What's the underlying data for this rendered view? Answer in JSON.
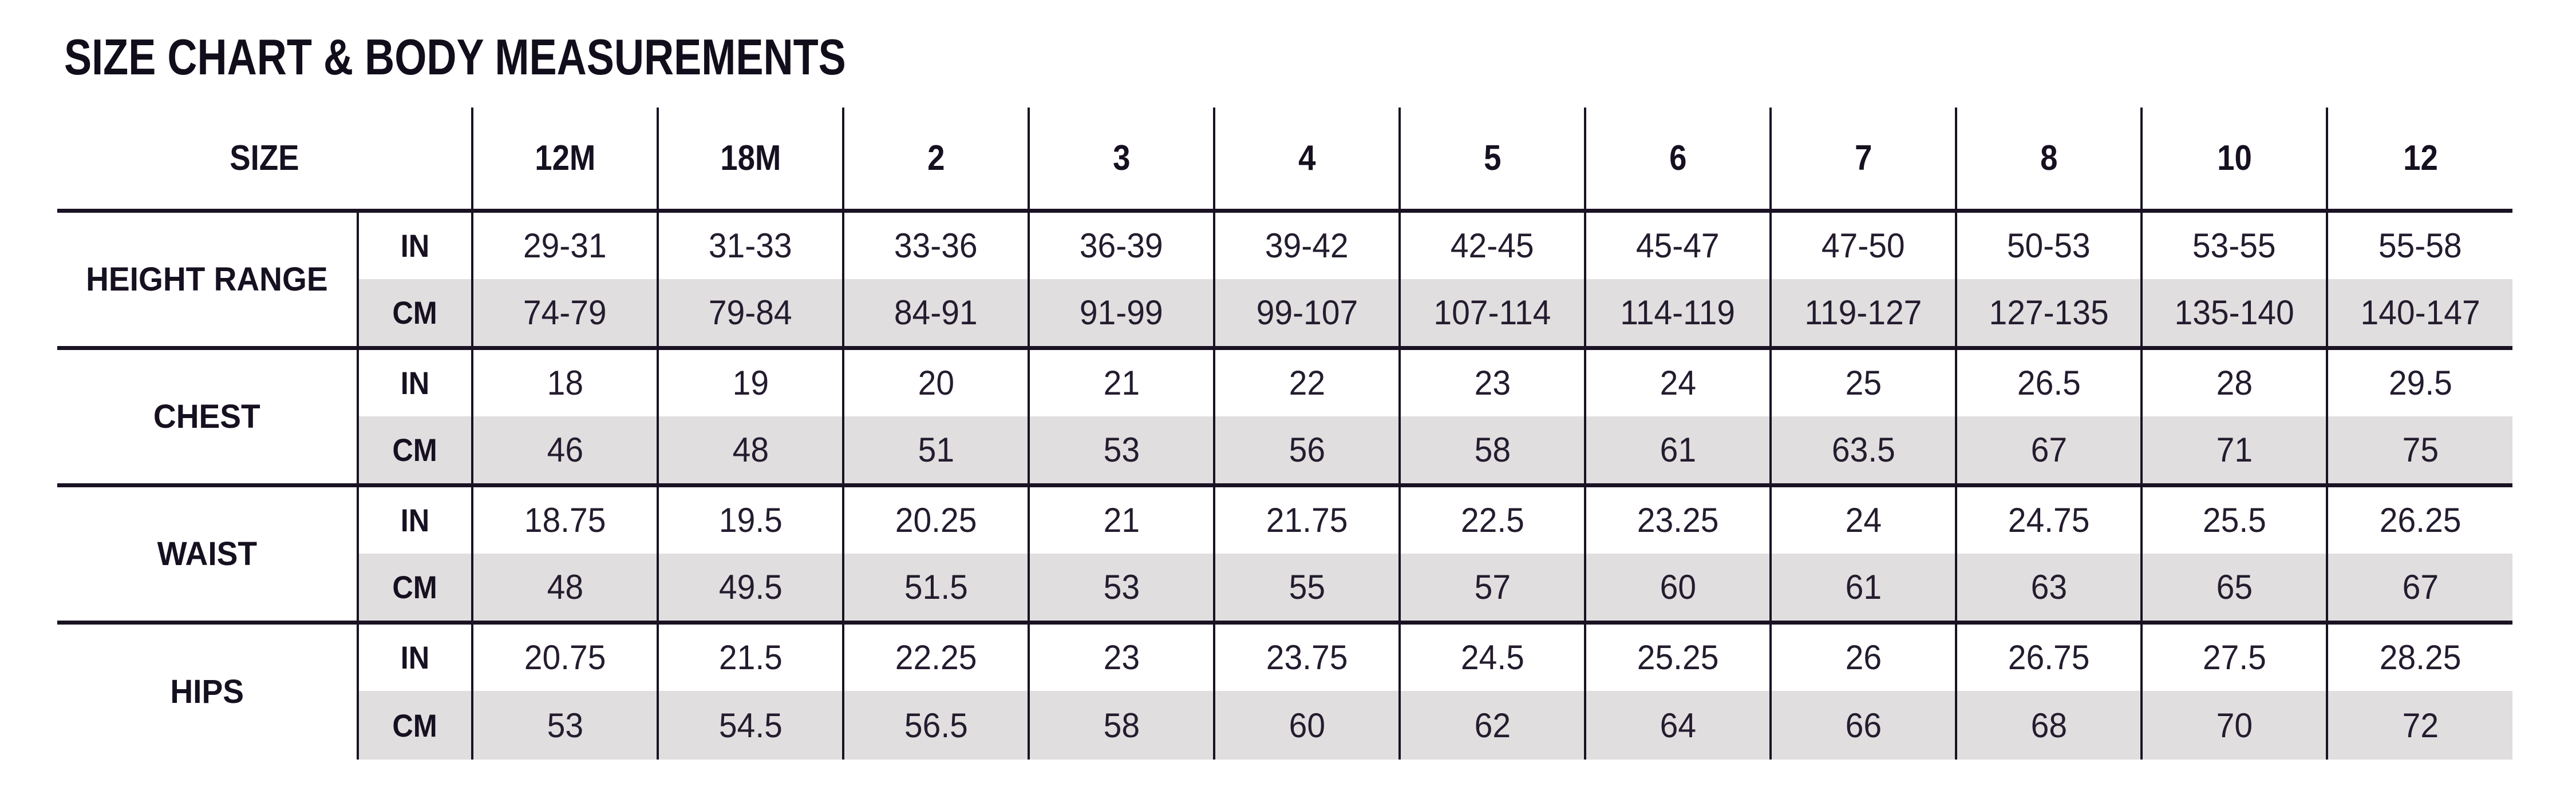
{
  "page": {
    "title": "SIZE CHART & BODY MEASUREMENTS"
  },
  "colors": {
    "text": "#1a1323",
    "grid_line": "#1a1323",
    "shaded_row": "#e0dedf",
    "background": "#ffffff"
  },
  "table": {
    "header": {
      "label": "SIZE",
      "sizes": [
        "12M",
        "18M",
        "2",
        "3",
        "4",
        "5",
        "6",
        "7",
        "8",
        "10",
        "12"
      ]
    },
    "units": {
      "in": "IN",
      "cm": "CM"
    },
    "groups": [
      {
        "label": "HEIGHT RANGE",
        "in": [
          "29-31",
          "31-33",
          "33-36",
          "36-39",
          "39-42",
          "42-45",
          "45-47",
          "47-50",
          "50-53",
          "53-55",
          "55-58"
        ],
        "cm": [
          "74-79",
          "79-84",
          "84-91",
          "91-99",
          "99-107",
          "107-114",
          "114-119",
          "119-127",
          "127-135",
          "135-140",
          "140-147"
        ]
      },
      {
        "label": "CHEST",
        "in": [
          "18",
          "19",
          "20",
          "21",
          "22",
          "23",
          "24",
          "25",
          "26.5",
          "28",
          "29.5"
        ],
        "cm": [
          "46",
          "48",
          "51",
          "53",
          "56",
          "58",
          "61",
          "63.5",
          "67",
          "71",
          "75"
        ]
      },
      {
        "label": "WAIST",
        "in": [
          "18.75",
          "19.5",
          "20.25",
          "21",
          "21.75",
          "22.5",
          "23.25",
          "24",
          "24.75",
          "25.5",
          "26.25"
        ],
        "cm": [
          "48",
          "49.5",
          "51.5",
          "53",
          "55",
          "57",
          "60",
          "61",
          "63",
          "65",
          "67"
        ]
      },
      {
        "label": "HIPS",
        "in": [
          "20.75",
          "21.5",
          "22.25",
          "23",
          "23.75",
          "24.5",
          "25.25",
          "26",
          "26.75",
          "27.5",
          "28.25"
        ],
        "cm": [
          "53",
          "54.5",
          "56.5",
          "58",
          "60",
          "62",
          "64",
          "66",
          "68",
          "70",
          "72"
        ]
      }
    ]
  }
}
